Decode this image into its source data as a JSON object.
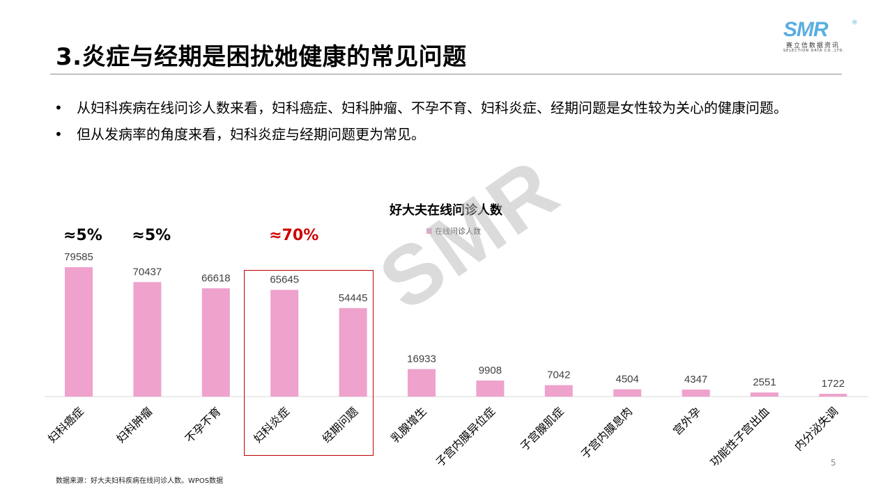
{
  "header": {
    "title": "3.炎症与经期是困扰她健康的常见问题",
    "logo_text": "SMR",
    "logo_reg": "®",
    "logo_cn": "赛立信数据资讯",
    "logo_en": "SELECTION DATA CO.,LTD."
  },
  "bullets": [
    "从妇科疾病在线问诊人数来看，妇科癌症、妇科肿瘤、不孕不育、妇科炎症、经期问题是女性较为关心的健康问题。",
    "但从发病率的角度来看，妇科炎症与经期问题更为常见。"
  ],
  "bullet_marker": "•",
  "annotations": [
    {
      "text": "≈5%",
      "color": "#000000",
      "category_index": 0
    },
    {
      "text": "≈5%",
      "color": "#000000",
      "category_index": 1
    },
    {
      "text": "≈70%",
      "color": "#d00000",
      "category_index": 3
    }
  ],
  "watermark": "SMR",
  "chart_data": {
    "type": "bar",
    "title": "好大夫在线问诊人数",
    "categories": [
      "妇科癌症",
      "妇科肿瘤",
      "不孕不育",
      "妇科炎症",
      "经期问题",
      "乳腺增生",
      "子宫内膜异位症",
      "子宫腺肌症",
      "子宫内膜息肉",
      "宫外孕",
      "功能性子宫出血",
      "内分泌失调"
    ],
    "series": [
      {
        "name": "在线问诊人数",
        "values": [
          79585,
          70437,
          66618,
          65645,
          54445,
          16933,
          9908,
          7042,
          4504,
          4347,
          2551,
          1722
        ],
        "color": "#eea2cc"
      }
    ],
    "ylim": [
      0,
      100000
    ],
    "grid": false,
    "legend": "top-center",
    "data_labels": true,
    "highlight": {
      "categories": [
        "妇科炎症",
        "经期问题"
      ],
      "color": "#c00000"
    }
  },
  "footer": {
    "source": "数据来源：好大夫妇科疾病在线问诊人数。WPOS数据",
    "page_number": "5"
  }
}
